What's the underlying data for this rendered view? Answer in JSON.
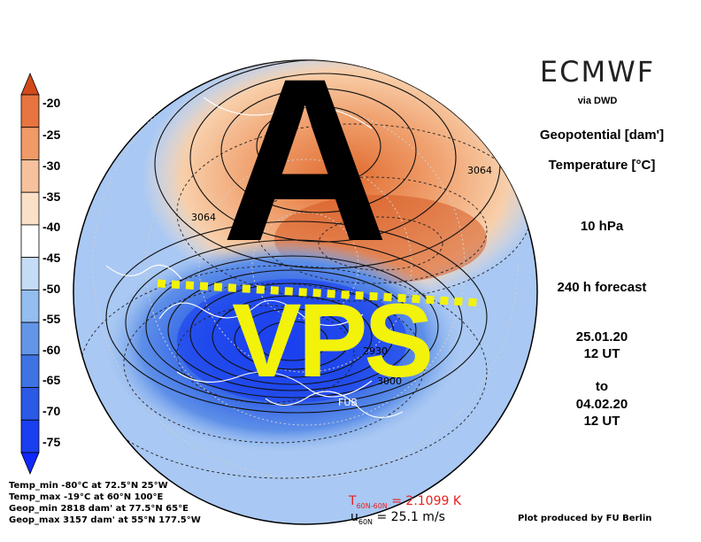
{
  "header": {
    "title": "ECMWF",
    "via": "via DWD"
  },
  "side": {
    "line1": "Geopotential [dam']",
    "line2": "Temperature [°C]",
    "level": "10 hPa",
    "forecast": "240 h forecast",
    "init_date": "25.01.20",
    "init_time": "12 UT",
    "to": "to",
    "valid_date": "04.02.20",
    "valid_time": "12 UT"
  },
  "colorbar": {
    "labels": [
      "-20",
      "-25",
      "-30",
      "-35",
      "-40",
      "-45",
      "-50",
      "-55",
      "-60",
      "-65",
      "-70",
      "-75"
    ],
    "colors": [
      "#d24a1c",
      "#e8743f",
      "#f09a68",
      "#f6c19c",
      "#fbe0c8",
      "#ffffff",
      "#c5dcf7",
      "#94bdf0",
      "#6496e8",
      "#3e73e3",
      "#2a5ae6",
      "#1a3ff0",
      "#1027ff"
    ]
  },
  "overlay": {
    "big_letter": "A",
    "vortex_label": "VPS"
  },
  "contour_labels": [
    "3064",
    "3064",
    "2930",
    "3000",
    "FUB"
  ],
  "stats": [
    "Temp_min  -80°C at 72.5°N 25°W",
    "Temp_max  -19°C at 60°N 100°E",
    "Geop_min 2818 dam' at 77.5°N 65°E",
    "Geop_max 3157 dam' at 55°N 177.5°W"
  ],
  "footer": {
    "t_prefix": "T",
    "t_sub": "60N-60N",
    "t_value": " = 2.1099 K",
    "u_prefix": "u",
    "u_sub": "60N",
    "u_value": " = 25.1 m/s",
    "credit": "Plot produced by FU Berlin"
  }
}
